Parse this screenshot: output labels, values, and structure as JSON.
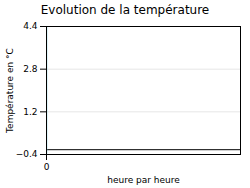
{
  "chart_data": {
    "type": "line",
    "title": "Evolution de la température",
    "xlabel": "heure par heure",
    "ylabel": "Température en °C",
    "xlim": [
      0,
      24
    ],
    "xticks": [
      0
    ],
    "ylim": [
      -0.4,
      4.4
    ],
    "yticks": [
      -0.4,
      1.2,
      2.8,
      4.4
    ],
    "grid": true,
    "hline": {
      "value": -0.22,
      "color": "#000000"
    },
    "vline": {
      "value": 0,
      "color": "#7fd8e8"
    }
  }
}
